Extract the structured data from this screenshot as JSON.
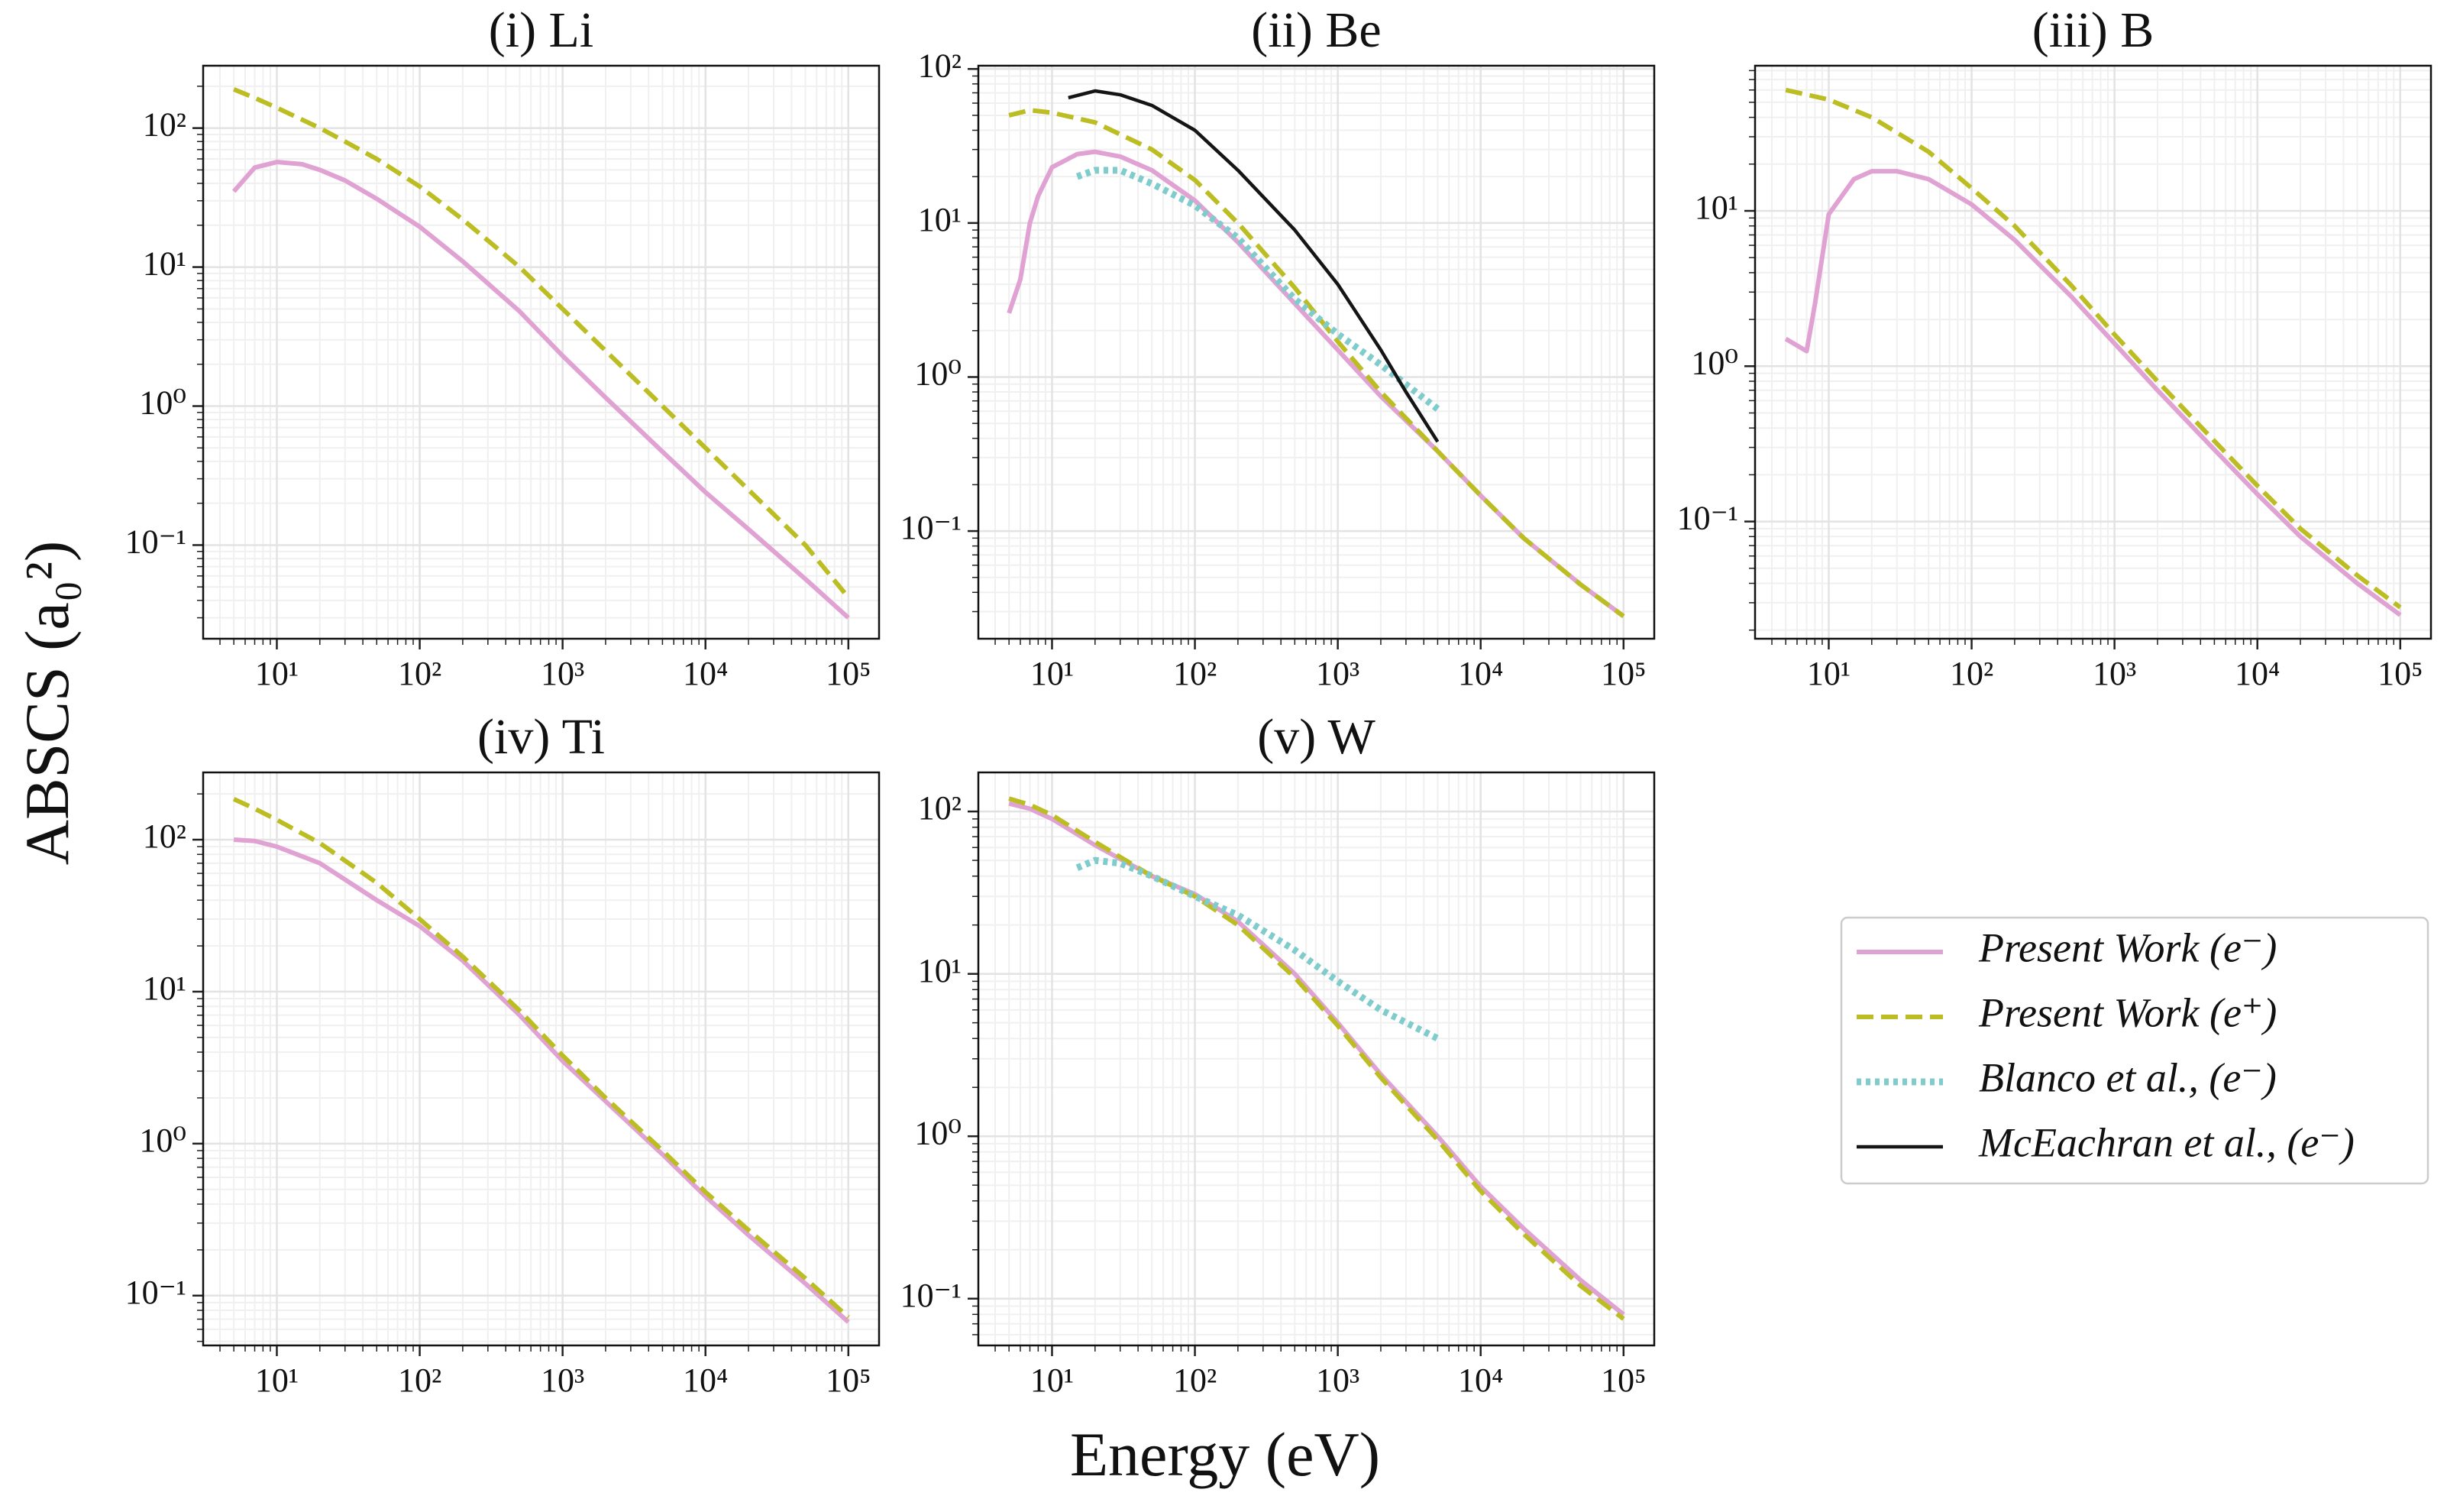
{
  "figure": {
    "xlabel": "Energy (eV)",
    "ylabel": "ABSCS (a₀²)",
    "legend": "center right"
  },
  "chart_data": [
    {
      "type": "line",
      "title": "(i) Li",
      "xscale": "log",
      "yscale": "log",
      "grid": true,
      "minor_grid": true,
      "xlim": [
        3.05,
        164000
      ],
      "ylim": [
        0.0212,
        281
      ],
      "xticks": [
        {
          "value": 10,
          "label": "10¹"
        },
        {
          "value": 100,
          "label": "10²"
        },
        {
          "value": 1000,
          "label": "10³"
        },
        {
          "value": 10000,
          "label": "10⁴"
        },
        {
          "value": 100000,
          "label": "10⁵"
        }
      ],
      "yticks": [
        {
          "value": 0.1,
          "label": "10⁻¹"
        },
        {
          "value": 1,
          "label": "10⁰"
        },
        {
          "value": 10,
          "label": "10¹"
        },
        {
          "value": 100,
          "label": "10²"
        }
      ],
      "series": [
        {
          "name": "Present Work (e⁻)",
          "color": "#e0a2d2",
          "dash": "solid",
          "x": [
            5,
            7,
            10,
            15,
            20,
            30,
            50,
            100,
            200,
            500,
            1000,
            2000,
            5000,
            10000,
            20000,
            50000,
            100000
          ],
          "values": [
            35,
            52,
            57,
            55,
            50,
            42,
            31,
            19.5,
            11,
            4.8,
            2.3,
            1.15,
            0.47,
            0.24,
            0.13,
            0.057,
            0.03
          ]
        },
        {
          "name": "Present Work (e⁺)",
          "color": "#bcbd22",
          "dash": "dashed",
          "x": [
            5,
            7,
            10,
            15,
            20,
            30,
            50,
            100,
            200,
            500,
            1000,
            2000,
            5000,
            10000,
            20000,
            50000,
            100000
          ],
          "values": [
            190,
            165,
            140,
            115,
            100,
            80,
            60,
            38,
            22,
            10,
            5,
            2.5,
            1.0,
            0.5,
            0.25,
            0.1,
            0.042
          ]
        }
      ]
    },
    {
      "type": "line",
      "title": "(ii) Be",
      "xscale": "log",
      "yscale": "log",
      "grid": true,
      "minor_grid": true,
      "xlim": [
        3.05,
        164000
      ],
      "ylim": [
        0.02,
        105
      ],
      "xticks": [
        {
          "value": 10,
          "label": "10¹"
        },
        {
          "value": 100,
          "label": "10²"
        },
        {
          "value": 1000,
          "label": "10³"
        },
        {
          "value": 10000,
          "label": "10⁴"
        },
        {
          "value": 100000,
          "label": "10⁵"
        }
      ],
      "yticks": [
        {
          "value": 0.1,
          "label": "10⁻¹"
        },
        {
          "value": 1,
          "label": "10⁰"
        },
        {
          "value": 10,
          "label": "10¹"
        },
        {
          "value": 100,
          "label": "10²"
        }
      ],
      "series": [
        {
          "name": "Present Work (e⁻)",
          "color": "#e0a2d2",
          "dash": "solid",
          "x": [
            5,
            6,
            7,
            8,
            10,
            15,
            20,
            30,
            50,
            100,
            200,
            500,
            1000,
            2000,
            5000,
            10000,
            20000,
            50000,
            100000
          ],
          "values": [
            2.6,
            4.3,
            10,
            15,
            23,
            28,
            29,
            27,
            22,
            14,
            7.5,
            3,
            1.5,
            0.75,
            0.33,
            0.17,
            0.09,
            0.045,
            0.028
          ]
        },
        {
          "name": "Present Work (e⁺)",
          "color": "#bcbd22",
          "dash": "dashed",
          "x": [
            5,
            7,
            10,
            20,
            50,
            100,
            200,
            500,
            1000,
            2000,
            5000,
            10000,
            20000,
            50000,
            100000
          ],
          "values": [
            50,
            54,
            52,
            45,
            30,
            19,
            10,
            3.8,
            1.7,
            0.8,
            0.33,
            0.17,
            0.09,
            0.045,
            0.028
          ]
        },
        {
          "name": "Blanco et al., (e⁻)",
          "color": "#80cccc",
          "dash": "dotted",
          "x": [
            15,
            20,
            30,
            50,
            100,
            200,
            500,
            1000,
            2000,
            5000
          ],
          "values": [
            20,
            22,
            22,
            18,
            13,
            8,
            3.2,
            1.9,
            1.2,
            0.62
          ]
        },
        {
          "name": "McEachran et al., (e⁻)",
          "color": "#151515",
          "dash": "thin",
          "x": [
            13,
            20,
            30,
            50,
            100,
            200,
            500,
            1000,
            2000,
            3000,
            5000
          ],
          "values": [
            65,
            72,
            68,
            58,
            40,
            22,
            9,
            4,
            1.5,
            0.8,
            0.38
          ]
        }
      ]
    },
    {
      "type": "line",
      "title": "(iii) B",
      "xscale": "log",
      "yscale": "log",
      "grid": true,
      "minor_grid": true,
      "xlim": [
        3.05,
        164000
      ],
      "ylim": [
        0.0176,
        86
      ],
      "xticks": [
        {
          "value": 10,
          "label": "10¹"
        },
        {
          "value": 100,
          "label": "10²"
        },
        {
          "value": 1000,
          "label": "10³"
        },
        {
          "value": 10000,
          "label": "10⁴"
        },
        {
          "value": 100000,
          "label": "10⁵"
        }
      ],
      "yticks": [
        {
          "value": 0.1,
          "label": "10⁻¹"
        },
        {
          "value": 1,
          "label": "10⁰"
        },
        {
          "value": 10,
          "label": "10¹"
        }
      ],
      "series": [
        {
          "name": "Present Work (e⁻)",
          "color": "#e0a2d2",
          "dash": "solid",
          "x": [
            5,
            7,
            8,
            10,
            15,
            20,
            30,
            50,
            100,
            200,
            500,
            1000,
            2000,
            5000,
            10000,
            20000,
            50000,
            100000
          ],
          "values": [
            1.5,
            1.25,
            2.5,
            9.5,
            16,
            18,
            18,
            16,
            11,
            6.5,
            2.8,
            1.4,
            0.7,
            0.29,
            0.15,
            0.08,
            0.04,
            0.025
          ]
        },
        {
          "name": "Present Work (e⁺)",
          "color": "#bcbd22",
          "dash": "dashed",
          "x": [
            5,
            7,
            10,
            20,
            50,
            100,
            200,
            500,
            1000,
            2000,
            5000,
            10000,
            20000,
            50000,
            100000
          ],
          "values": [
            60,
            56,
            52,
            40,
            24,
            14,
            8,
            3.3,
            1.6,
            0.8,
            0.33,
            0.17,
            0.09,
            0.045,
            0.028
          ]
        }
      ]
    },
    {
      "type": "line",
      "title": "(iv) Ti",
      "xscale": "log",
      "yscale": "log",
      "grid": true,
      "minor_grid": true,
      "xlim": [
        3.05,
        164000
      ],
      "ylim": [
        0.047,
        277
      ],
      "xticks": [
        {
          "value": 10,
          "label": "10¹"
        },
        {
          "value": 100,
          "label": "10²"
        },
        {
          "value": 1000,
          "label": "10³"
        },
        {
          "value": 10000,
          "label": "10⁴"
        },
        {
          "value": 100000,
          "label": "10⁵"
        }
      ],
      "yticks": [
        {
          "value": 0.1,
          "label": "10⁻¹"
        },
        {
          "value": 1,
          "label": "10⁰"
        },
        {
          "value": 10,
          "label": "10¹"
        },
        {
          "value": 100,
          "label": "10²"
        }
      ],
      "series": [
        {
          "name": "Present Work (e⁻)",
          "color": "#e0a2d2",
          "dash": "solid",
          "x": [
            5,
            7,
            10,
            20,
            50,
            100,
            200,
            500,
            1000,
            2000,
            5000,
            10000,
            20000,
            50000,
            100000
          ],
          "values": [
            100,
            98,
            90,
            70,
            40,
            27,
            16,
            7,
            3.5,
            1.9,
            0.85,
            0.45,
            0.25,
            0.12,
            0.067
          ]
        },
        {
          "name": "Present Work (e⁺)",
          "color": "#bcbd22",
          "dash": "dashed",
          "x": [
            5,
            7,
            10,
            20,
            50,
            100,
            200,
            500,
            1000,
            2000,
            5000,
            10000,
            20000,
            50000,
            100000
          ],
          "values": [
            185,
            160,
            135,
            95,
            52,
            30,
            17,
            7.5,
            3.8,
            2,
            0.9,
            0.48,
            0.27,
            0.13,
            0.072
          ]
        }
      ]
    },
    {
      "type": "line",
      "title": "(v) W",
      "xscale": "log",
      "yscale": "log",
      "grid": true,
      "minor_grid": true,
      "xlim": [
        3.05,
        164000
      ],
      "ylim": [
        0.0515,
        174
      ],
      "xticks": [
        {
          "value": 10,
          "label": "10¹"
        },
        {
          "value": 100,
          "label": "10²"
        },
        {
          "value": 1000,
          "label": "10³"
        },
        {
          "value": 10000,
          "label": "10⁴"
        },
        {
          "value": 100000,
          "label": "10⁵"
        }
      ],
      "yticks": [
        {
          "value": 0.1,
          "label": "10⁻¹"
        },
        {
          "value": 1,
          "label": "10⁰"
        },
        {
          "value": 10,
          "label": "10¹"
        },
        {
          "value": 100,
          "label": "10²"
        }
      ],
      "series": [
        {
          "name": "Present Work (e⁻)",
          "color": "#e0a2d2",
          "dash": "solid",
          "x": [
            5,
            7,
            10,
            20,
            50,
            100,
            200,
            500,
            1000,
            2000,
            5000,
            10000,
            20000,
            50000,
            100000
          ],
          "values": [
            112,
            104,
            90,
            62,
            40,
            31,
            21,
            10,
            5,
            2.4,
            1.0,
            0.49,
            0.27,
            0.13,
            0.08
          ]
        },
        {
          "name": "Present Work (e⁺)",
          "color": "#bcbd22",
          "dash": "dashed",
          "x": [
            5,
            7,
            10,
            20,
            50,
            100,
            200,
            500,
            1000,
            2000,
            5000,
            10000,
            20000,
            50000,
            100000
          ],
          "values": [
            120,
            110,
            95,
            65,
            40,
            30,
            20,
            9.5,
            4.8,
            2.3,
            0.95,
            0.46,
            0.25,
            0.12,
            0.075
          ]
        },
        {
          "name": "Blanco et al., (e⁻)",
          "color": "#80cccc",
          "dash": "dotted",
          "x": [
            15,
            20,
            30,
            50,
            100,
            200,
            500,
            1000,
            2000,
            5000
          ],
          "values": [
            45,
            50,
            48,
            40,
            30,
            23,
            14,
            9,
            6,
            4
          ]
        }
      ]
    }
  ]
}
